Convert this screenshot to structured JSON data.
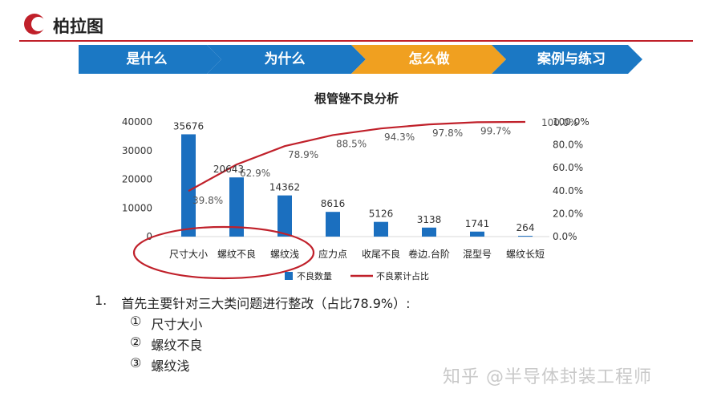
{
  "header": {
    "title": "柏拉图"
  },
  "steps": [
    "是什么",
    "为什么",
    "怎么做",
    "案例与练习"
  ],
  "colors": {
    "accent": "#c0202a",
    "step_blue": "#1b78c4",
    "step_orange": "#f0a020",
    "bar": "#1b6fbf",
    "line": "#c0202a"
  },
  "chart_data": {
    "type": "bar",
    "title": "根管锉不良分析",
    "categories": [
      "尺寸大小",
      "螺纹不良",
      "螺纹浅",
      "应力点",
      "收尾不良",
      "卷边.台阶",
      "混型号",
      "螺纹长短"
    ],
    "series": [
      {
        "name": "不良数量",
        "type": "bar",
        "axis": "left",
        "values": [
          35676,
          20643,
          14362,
          8616,
          5126,
          3138,
          1741,
          264
        ]
      },
      {
        "name": "不良累计占比",
        "type": "line",
        "axis": "right",
        "values": [
          39.8,
          62.9,
          78.9,
          88.5,
          94.3,
          97.8,
          99.7,
          100.0
        ]
      }
    ],
    "bar_labels": [
      "35676",
      "20643",
      "14362",
      "8616",
      "5126",
      "3138",
      "1741",
      "264"
    ],
    "line_labels": [
      "39.8%",
      "62.9%",
      "78.9%",
      "88.5%",
      "94.3%",
      "97.8%",
      "99.7%",
      "100.0%"
    ],
    "y_left": {
      "ticks": [
        "40000",
        "30000",
        "20000",
        "10000",
        "0"
      ],
      "range": [
        0,
        40000
      ]
    },
    "y_right": {
      "ticks": [
        "100.0%",
        "80.0%",
        "60.0%",
        "40.0%",
        "20.0%",
        "0.0%"
      ],
      "range": [
        0,
        100
      ]
    },
    "legend": [
      "不良数量",
      "不良累计占比"
    ],
    "legend_position": "bottom",
    "highlight": [
      "尺寸大小",
      "螺纹不良",
      "螺纹浅"
    ]
  },
  "notes": {
    "number": "1.",
    "main": "首先主要针对三大类问题进行整改（占比78.9%）:",
    "items": [
      {
        "marker": "①",
        "text": "尺寸大小"
      },
      {
        "marker": "②",
        "text": "螺纹不良"
      },
      {
        "marker": "③",
        "text": "螺纹浅"
      }
    ]
  },
  "watermark": "知乎 @半导体封装工程师"
}
